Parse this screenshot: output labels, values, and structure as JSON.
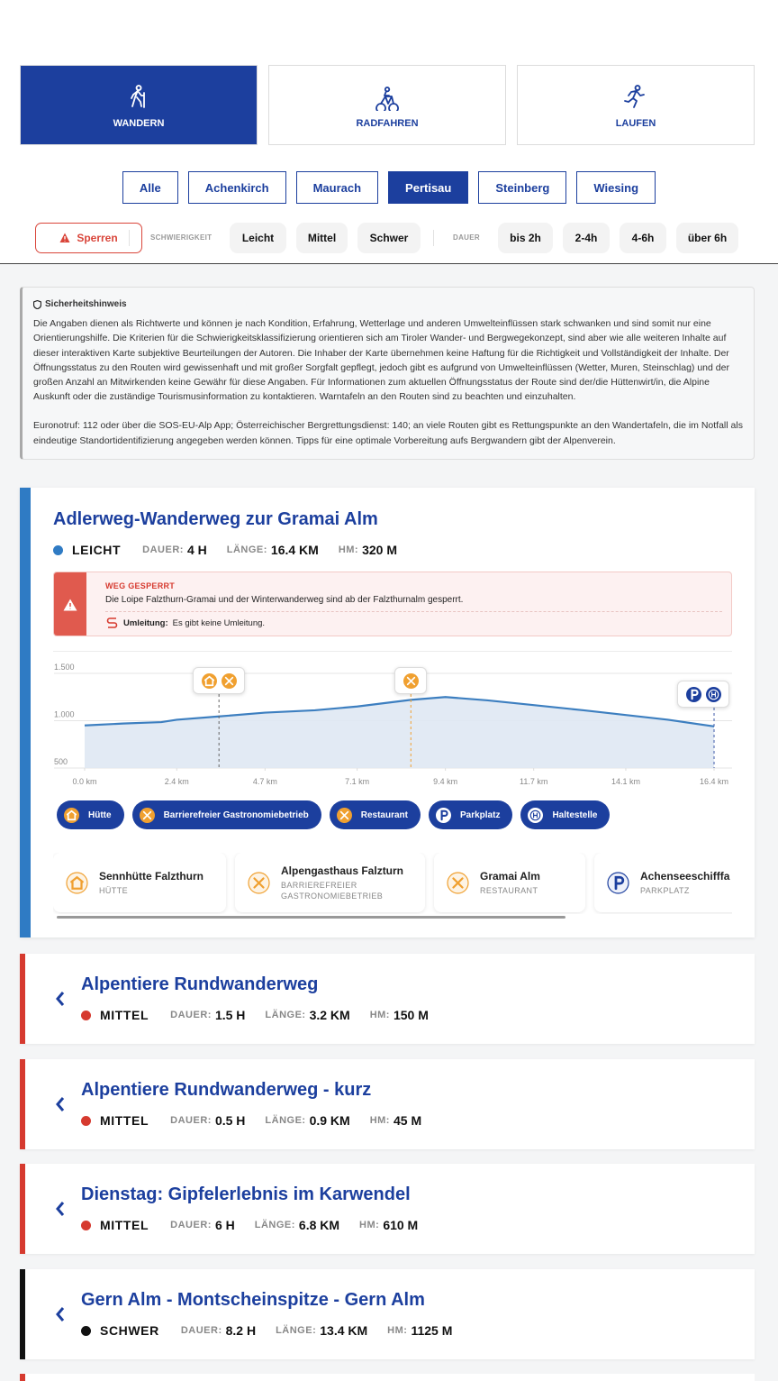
{
  "tabs": [
    {
      "label": "WANDERN",
      "active": true
    },
    {
      "label": "RADFAHREN"
    },
    {
      "label": "LAUFEN"
    }
  ],
  "regions": [
    {
      "label": "Alle"
    },
    {
      "label": "Achenkirch"
    },
    {
      "label": "Maurach"
    },
    {
      "label": "Pertisau",
      "active": true
    },
    {
      "label": "Steinberg"
    },
    {
      "label": "Wiesing"
    }
  ],
  "filters": {
    "closed": "Sperren",
    "difficulty_label": "SCHWIERIGKEIT",
    "difficulty": [
      "Leicht",
      "Mittel",
      "Schwer"
    ],
    "duration_label": "DAUER",
    "duration": [
      "bis 2h",
      "2-4h",
      "4-6h",
      "über 6h"
    ]
  },
  "notice": {
    "title": "Sicherheitshinweis",
    "paragraphs": [
      "Die Angaben dienen als Richtwerte und können je nach Kondition, Erfahrung, Wetterlage und anderen Umwelteinflüssen stark schwanken und sind somit nur eine Orientierungshilfe. Die Kriterien für die Schwierigkeitsklassifizierung orientieren sich am Tiroler Wander- und Bergwegekonzept, sind aber wie alle weiteren Inhalte auf dieser interaktiven Karte subjektive Beurteilungen der Autoren. Die Inhaber der Karte übernehmen keine Haftung für die Richtigkeit und Vollständigkeit der Inhalte. Der Öffnungsstatus zu den Routen wird gewissenhaft und mit großer Sorgfalt gepflegt, jedoch gibt es aufgrund von Umwelteinflüssen (Wetter, Muren, Steinschlag) und der großen Anzahl an Mitwirkenden keine Gewähr für diese Angaben. Für Informationen zum aktuellen Öffnungsstatus der Route sind der/die Hüttenwirt/in, die Alpine Auskunft oder die zuständige Tourismusinformation zu kontaktieren. Warntafeln an den Routen sind zu beachten und einzuhalten.",
      "Euronotruf: 112 oder über die SOS-EU-Alp App; Österreichischer Bergrettungsdienst: 140; an viele Routen gibt es Rettungspunkte an den Wandertafeln, die im Notfall als eindeutige Standortidentifizierung angegeben werden können. Tipps für eine optimale Vorbereitung aufs Bergwandern gibt der Alpenverein."
    ]
  },
  "routes": [
    {
      "title": "Adlerweg-Wanderweg zur Gramai Alm",
      "difficulty": "LEICHT",
      "color": "#2f7bc4",
      "stats": [
        {
          "label": "DAUER:",
          "value": "4 H"
        },
        {
          "label": "LÄNGE:",
          "value": "16.4 KM"
        },
        {
          "label": "HM:",
          "value": "320 M"
        }
      ],
      "closure": {
        "title": "WEG GESPERRT",
        "text": "Die Loipe Falzthurn-Gramai und der Winterwanderweg sind ab der Falzthurnalm gesperrt.",
        "detour_label": "Umleitung:",
        "detour_text": "Es gibt keine Umleitung."
      },
      "chips": [
        "Hütte",
        "Barrierefreier Gastronomiebetrieb",
        "Restaurant",
        "Parkplatz",
        "Haltestelle"
      ],
      "pois": [
        {
          "name": "Sennhütte Falzthurn",
          "type": "HÜTTE"
        },
        {
          "name": "Alpengasthaus Falzturn",
          "type": "BARRIEREFREIER GASTRONOMIEBETRIEB"
        },
        {
          "name": "Gramai Alm",
          "type": "RESTAURANT"
        },
        {
          "name": "Achenseeschifffa",
          "type": "PARKPLATZ"
        }
      ]
    },
    {
      "title": "Alpentiere Rundwanderweg",
      "difficulty": "MITTEL",
      "color": "#d63a2f",
      "stats": [
        {
          "label": "DAUER:",
          "value": "1.5 H"
        },
        {
          "label": "LÄNGE:",
          "value": "3.2 KM"
        },
        {
          "label": "HM:",
          "value": "150 M"
        }
      ]
    },
    {
      "title": "Alpentiere Rundwanderweg - kurz",
      "difficulty": "MITTEL",
      "color": "#d63a2f",
      "stats": [
        {
          "label": "DAUER:",
          "value": "0.5 H"
        },
        {
          "label": "LÄNGE:",
          "value": "0.9 KM"
        },
        {
          "label": "HM:",
          "value": "45 M"
        }
      ]
    },
    {
      "title": "Dienstag: Gipfelerlebnis im Karwendel",
      "difficulty": "MITTEL",
      "color": "#d63a2f",
      "stats": [
        {
          "label": "DAUER:",
          "value": "6 H"
        },
        {
          "label": "LÄNGE:",
          "value": "6.8 KM"
        },
        {
          "label": "HM:",
          "value": "610 M"
        }
      ]
    },
    {
      "title": "Gern Alm - Montscheinspitze - Gern Alm",
      "difficulty": "SCHWER",
      "color": "#111111",
      "stats": [
        {
          "label": "DAUER:",
          "value": "8.2 H"
        },
        {
          "label": "LÄNGE:",
          "value": "13.4 KM"
        },
        {
          "label": "HM:",
          "value": "1125 M"
        }
      ]
    }
  ],
  "chart_data": {
    "type": "area",
    "color": "#3d7fc0",
    "x": [
      0,
      1,
      2,
      2.4,
      3.5,
      4.7,
      6,
      7.1,
      8.5,
      9.4,
      10.5,
      11.7,
      13,
      14.1,
      15.2,
      16.4
    ],
    "values": [
      950,
      970,
      985,
      1010,
      1045,
      1085,
      1110,
      1150,
      1220,
      1250,
      1215,
      1165,
      1110,
      1060,
      1010,
      940
    ],
    "markers": [
      3.5,
      8.5,
      16.4
    ],
    "xlim": [
      0,
      16.4
    ],
    "ylim": [
      500,
      1500
    ],
    "xticks": [
      {
        "value": 0,
        "label": "0.0 km"
      },
      {
        "value": 2.4,
        "label": "2.4 km"
      },
      {
        "value": 4.7,
        "label": "4.7 km"
      },
      {
        "value": 7.1,
        "label": "7.1 km"
      },
      {
        "value": 9.4,
        "label": "9.4 km"
      },
      {
        "value": 11.7,
        "label": "11.7 km"
      },
      {
        "value": 14.1,
        "label": "14.1 km"
      },
      {
        "value": 16.4,
        "label": "16.4 km"
      }
    ],
    "yticks": [
      500,
      {
        "value": 1000,
        "label": "1.000"
      },
      {
        "value": 1500,
        "label": "1.500"
      }
    ],
    "grid": true
  }
}
